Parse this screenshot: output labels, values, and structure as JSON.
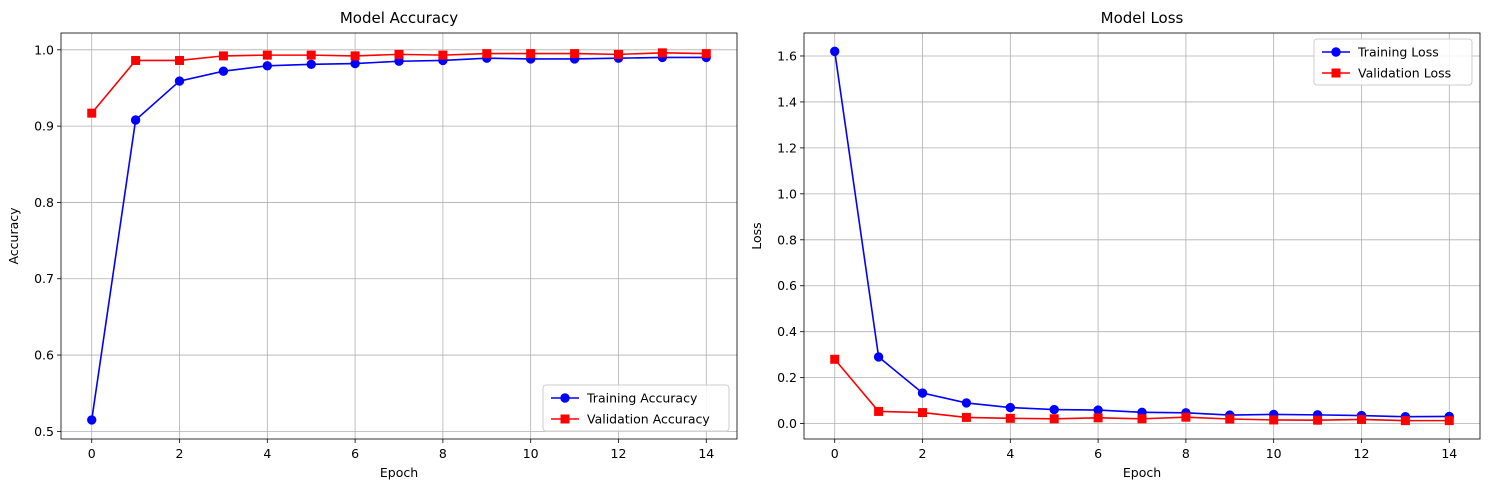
{
  "chart_data": [
    {
      "type": "line",
      "title": "Model Accuracy",
      "xlabel": "Epoch",
      "ylabel": "Accuracy",
      "xlim": [
        -0.7,
        14.7
      ],
      "ylim": [
        0.49,
        1.022
      ],
      "xticks": [
        0,
        2,
        4,
        6,
        8,
        10,
        12,
        14
      ],
      "yticks": [
        0.5,
        0.6,
        0.7,
        0.8,
        0.9,
        1.0
      ],
      "ytick_labels": [
        "0.5",
        "0.6",
        "0.7",
        "0.8",
        "0.9",
        "1.0"
      ],
      "grid": true,
      "legend_position": "lower-right",
      "x": [
        0,
        1,
        2,
        3,
        4,
        5,
        6,
        7,
        8,
        9,
        10,
        11,
        12,
        13,
        14
      ],
      "series": [
        {
          "name": "Training Accuracy",
          "color": "#0000ff",
          "marker": "circle",
          "values": [
            0.515,
            0.908,
            0.959,
            0.972,
            0.979,
            0.981,
            0.982,
            0.985,
            0.986,
            0.989,
            0.988,
            0.988,
            0.989,
            0.99,
            0.99
          ]
        },
        {
          "name": "Validation Accuracy",
          "color": "#ff0000",
          "marker": "square",
          "values": [
            0.917,
            0.986,
            0.986,
            0.992,
            0.993,
            0.993,
            0.992,
            0.994,
            0.993,
            0.995,
            0.995,
            0.995,
            0.994,
            0.996,
            0.995
          ]
        }
      ]
    },
    {
      "type": "line",
      "title": "Model Loss",
      "xlabel": "Epoch",
      "ylabel": "Loss",
      "xlim": [
        -0.7,
        14.7
      ],
      "ylim": [
        -0.067,
        1.7
      ],
      "xticks": [
        0,
        2,
        4,
        6,
        8,
        10,
        12,
        14
      ],
      "yticks": [
        0.0,
        0.2,
        0.4,
        0.6,
        0.8,
        1.0,
        1.2,
        1.4,
        1.6
      ],
      "ytick_labels": [
        "0.0",
        "0.2",
        "0.4",
        "0.6",
        "0.8",
        "1.0",
        "1.2",
        "1.4",
        "1.6"
      ],
      "grid": true,
      "legend_position": "upper-right",
      "x": [
        0,
        1,
        2,
        3,
        4,
        5,
        6,
        7,
        8,
        9,
        10,
        11,
        12,
        13,
        14
      ],
      "series": [
        {
          "name": "Training Loss",
          "color": "#0000ff",
          "marker": "circle",
          "values": [
            1.62,
            0.29,
            0.133,
            0.09,
            0.07,
            0.061,
            0.059,
            0.049,
            0.047,
            0.037,
            0.04,
            0.038,
            0.035,
            0.03,
            0.031
          ]
        },
        {
          "name": "Validation Loss",
          "color": "#ff0000",
          "marker": "square",
          "values": [
            0.28,
            0.053,
            0.048,
            0.027,
            0.023,
            0.021,
            0.025,
            0.021,
            0.028,
            0.02,
            0.016,
            0.015,
            0.018,
            0.013,
            0.013
          ]
        }
      ]
    }
  ]
}
